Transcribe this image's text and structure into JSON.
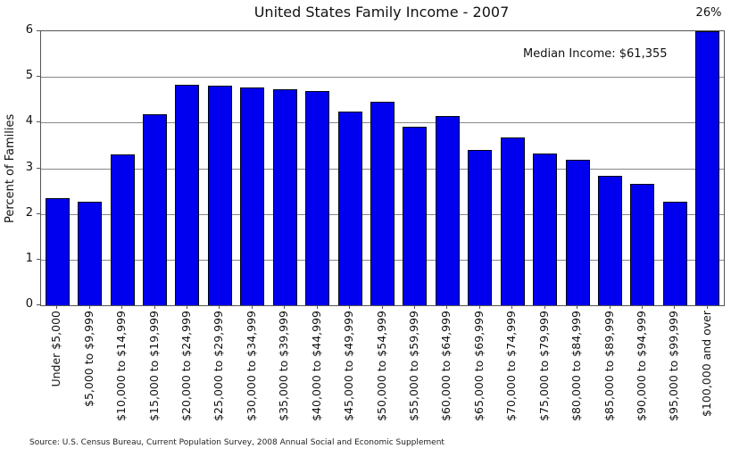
{
  "figure": {
    "title": "United States Family Income - 2007",
    "top_bar_label": "26%",
    "median_annotation": "Median Income: $61,355",
    "source": "Source: U.S. Census Bureau, Current Population Survey, 2008 Annual Social and Economic Supplement"
  },
  "chart_data": {
    "type": "bar",
    "title": "United States Family Income - 2007",
    "xlabel": "",
    "ylabel": "Percent of Families",
    "ylim": [
      0,
      6
    ],
    "yticks": [
      0,
      1,
      2,
      3,
      4,
      5,
      6
    ],
    "grid": true,
    "bar_color": "#0000ee",
    "categories": [
      "Under $5,000",
      "$5,000 to $9,999",
      "$10,000 to $14,999",
      "$15,000 to $19,999",
      "$20,000 to $24,999",
      "$25,000 to $29,999",
      "$30,000 to $34,999",
      "$35,000 to $39,999",
      "$40,000 to $44,999",
      "$45,000 to $49,999",
      "$50,000 to $54,999",
      "$55,000 to $59,999",
      "$60,000 to $64,999",
      "$65,000 to $69,999",
      "$70,000 to $74,999",
      "$75,000 to $79,999",
      "$80,000 to $84,999",
      "$85,000 to $89,999",
      "$90,000 to $94,999",
      "$95,000 to $99,999",
      "$100,000 and over"
    ],
    "values": [
      2.34,
      2.27,
      3.3,
      4.18,
      4.83,
      4.81,
      4.77,
      4.73,
      4.69,
      4.24,
      4.46,
      3.9,
      4.15,
      3.41,
      3.67,
      3.33,
      3.18,
      2.83,
      2.66,
      2.27,
      26
    ],
    "clipped_last_bar": {
      "category": "$100,000 and over",
      "value_percent": 26,
      "label": "26%",
      "drawn_at_ymax": 6
    },
    "annotations": [
      {
        "text": "Median Income: $61,355",
        "position": "upper-right-inside-plot"
      },
      {
        "text": "26%",
        "position": "above-last-bar"
      }
    ],
    "legend": null,
    "source": "Source: U.S. Census Bureau, Current Population Survey, 2008 Annual Social and Economic Supplement"
  }
}
